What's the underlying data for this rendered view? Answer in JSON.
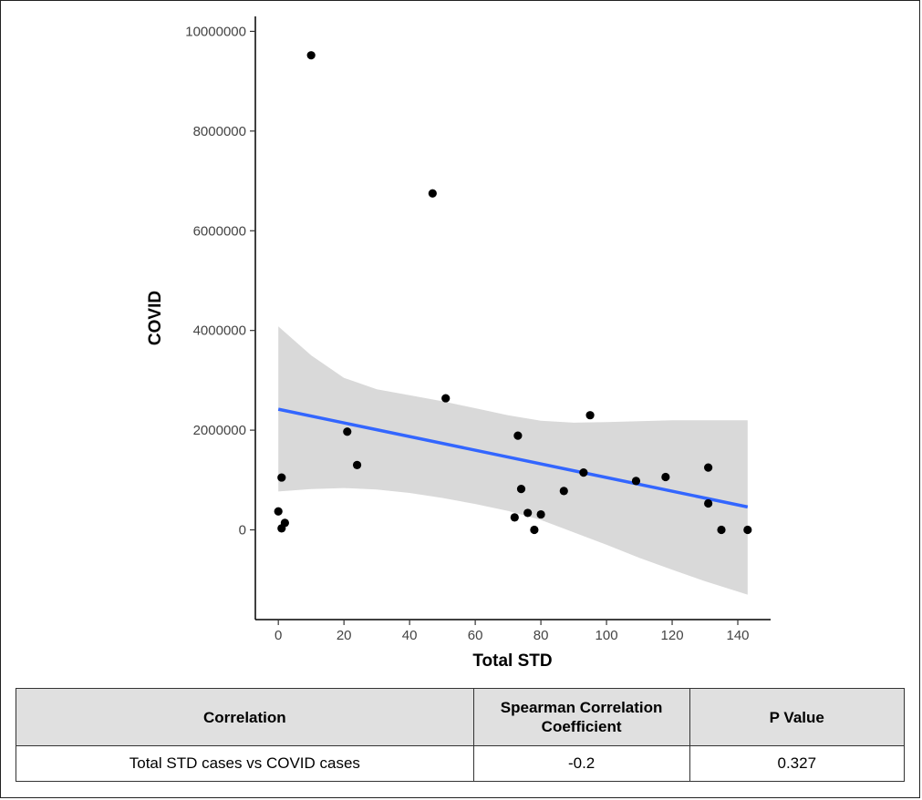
{
  "chart_data": {
    "type": "scatter",
    "xlabel": "Total STD",
    "ylabel": "COVID",
    "xlim": [
      -7,
      150
    ],
    "ylim": [
      -1800000,
      10300000
    ],
    "x_ticks": [
      0,
      20,
      40,
      60,
      80,
      100,
      120,
      140
    ],
    "y_ticks": [
      0,
      2000000,
      4000000,
      6000000,
      8000000,
      10000000
    ],
    "y_tick_labels": [
      "0",
      "2000000",
      "4000000",
      "6000000",
      "8000000",
      "10000000"
    ],
    "grid": false,
    "points": [
      {
        "x": 0,
        "y": 370000
      },
      {
        "x": 1,
        "y": 1050000
      },
      {
        "x": 1,
        "y": 30000
      },
      {
        "x": 2,
        "y": 140000
      },
      {
        "x": 10,
        "y": 9520000
      },
      {
        "x": 21,
        "y": 1970000
      },
      {
        "x": 24,
        "y": 1300000
      },
      {
        "x": 47,
        "y": 6750000
      },
      {
        "x": 51,
        "y": 2640000
      },
      {
        "x": 72,
        "y": 250000
      },
      {
        "x": 73,
        "y": 1890000
      },
      {
        "x": 74,
        "y": 820000
      },
      {
        "x": 76,
        "y": 340000
      },
      {
        "x": 78,
        "y": 0
      },
      {
        "x": 80,
        "y": 310000
      },
      {
        "x": 87,
        "y": 780000
      },
      {
        "x": 93,
        "y": 1150000
      },
      {
        "x": 95,
        "y": 2300000
      },
      {
        "x": 109,
        "y": 980000
      },
      {
        "x": 118,
        "y": 1060000
      },
      {
        "x": 131,
        "y": 1250000
      },
      {
        "x": 131,
        "y": 530000
      },
      {
        "x": 135,
        "y": 0
      },
      {
        "x": 143,
        "y": 0
      }
    ],
    "trend_line": {
      "x": [
        0,
        143
      ],
      "y": [
        2420000,
        460000
      ],
      "color": "#3366ff"
    },
    "confidence_band": {
      "x": [
        0,
        10,
        20,
        30,
        40,
        50,
        60,
        70,
        80,
        90,
        100,
        110,
        120,
        130,
        143
      ],
      "upper": [
        4080000,
        3500000,
        3050000,
        2820000,
        2700000,
        2580000,
        2440000,
        2300000,
        2190000,
        2150000,
        2160000,
        2180000,
        2200000,
        2200000,
        2200000
      ],
      "lower": [
        770000,
        820000,
        840000,
        810000,
        740000,
        640000,
        520000,
        380000,
        200000,
        -50000,
        -300000,
        -560000,
        -800000,
        -1030000,
        -1300000
      ],
      "color": "#d9d9d9"
    },
    "point_color": "#000000"
  },
  "table": {
    "headers": [
      "Correlation",
      "Spearman Correlation Coefficient",
      "P Value"
    ],
    "rows": [
      [
        "Total STD cases vs COVID cases",
        "-0.2",
        "0.327"
      ]
    ]
  }
}
